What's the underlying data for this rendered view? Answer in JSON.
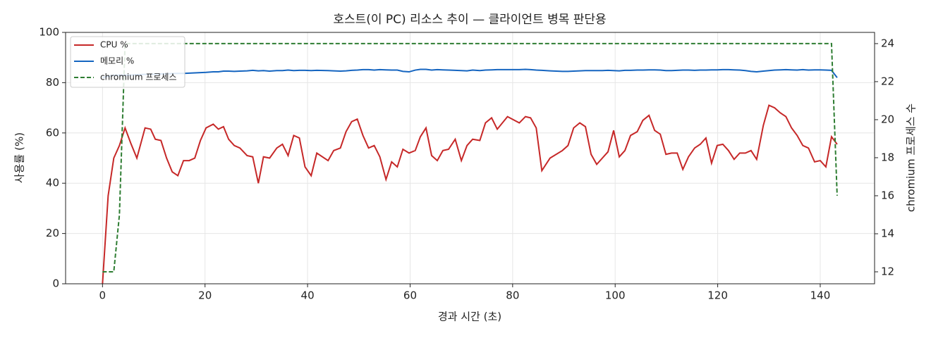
{
  "chart_data": {
    "type": "line",
    "title": "호스트(이 PC) 리소스 추이 — 클라이언트 병목 판단용",
    "x_label": "경과 시간 (초)",
    "y_label": "사용률 (%)",
    "y2_label": "chromium 프로세스 수",
    "x": [
      0,
      1.1,
      2.2,
      3.3,
      4.4,
      5.5,
      6.7,
      8.3,
      9.4,
      10.3,
      11.4,
      12.5,
      13.6,
      14.7,
      15.8,
      16.9,
      18,
      19.1,
      20.2,
      21.6,
      22.6,
      23.6,
      24.6,
      25.7,
      26.8,
      28.2,
      29.3,
      30.4,
      31.4,
      32.6,
      34,
      35.1,
      36.2,
      37.3,
      38.4,
      39.5,
      40.7,
      41.8,
      44,
      45.1,
      46.4,
      47.5,
      48.6,
      49.7,
      50.8,
      51.9,
      53,
      54.1,
      55.3,
      56.4,
      57.5,
      58.6,
      59.8,
      61,
      62,
      63.1,
      64.2,
      65.3,
      66.4,
      67.5,
      68.8,
      70,
      71.1,
      72.2,
      73.6,
      74.7,
      75.9,
      77,
      79,
      81.3,
      82.5,
      83.5,
      84.6,
      85.7,
      87.3,
      89.7,
      90.8,
      91.9,
      93.1,
      94.2,
      95.3,
      96.4,
      97.5,
      98.6,
      99.7,
      100.8,
      101.9,
      103,
      104.3,
      105.4,
      106.6,
      107.7,
      108.8,
      109.9,
      111,
      112.1,
      113.2,
      114.3,
      115.5,
      116.6,
      117.7,
      118.8,
      119.9,
      121,
      122.1,
      123.2,
      124.3,
      125.4,
      126.5,
      127.6,
      128.9,
      130,
      131.1,
      132.2,
      133.3,
      134.4,
      135.5,
      136.6,
      137.7,
      138.9,
      140,
      141.1,
      142.2,
      143.3
    ],
    "series": [
      {
        "name": "CPU %",
        "color": "#c62828",
        "linestyle": "solid",
        "values": [
          0,
          35,
          50,
          55,
          62,
          56,
          50,
          62,
          61.5,
          57.5,
          57,
          50,
          44.5,
          43,
          49,
          49,
          50,
          57,
          62,
          63.5,
          61.5,
          62.5,
          57.5,
          55,
          54,
          51,
          50.5,
          40,
          50.5,
          50,
          54,
          55.5,
          51,
          59,
          58,
          46.5,
          43,
          52,
          49,
          53,
          54,
          60.5,
          64.5,
          65.5,
          59,
          54,
          55,
          50.5,
          41.5,
          48.5,
          46.5,
          53.5,
          52,
          53,
          58.5,
          62,
          51,
          49,
          53,
          53.5,
          57.5,
          49,
          55,
          57.5,
          57,
          64,
          66,
          61.5,
          66.5,
          64,
          66.5,
          66,
          62,
          45,
          50,
          53,
          55,
          62,
          64,
          62.5,
          51.5,
          47.5,
          50,
          52.5,
          61,
          50.5,
          53,
          59,
          60.5,
          65,
          67,
          61,
          59.5,
          51.5,
          52,
          52,
          45.5,
          50.5,
          54,
          55.5,
          58,
          48,
          55,
          55.5,
          53,
          49.5,
          52,
          52,
          53,
          49.5,
          63,
          71,
          70,
          68,
          66.5,
          62,
          59,
          55,
          54,
          48.5,
          49,
          46.5,
          58.5,
          55.5
        ]
      },
      {
        "name": "메모리 %",
        "color": "#1565c0",
        "linestyle": "solid",
        "values": [
          82,
          82.5,
          83,
          83,
          83,
          83,
          83.2,
          83.3,
          83.3,
          83.4,
          83.5,
          83.5,
          83.6,
          83.7,
          83.7,
          83.8,
          83.9,
          84,
          84.1,
          84.3,
          84.3,
          84.6,
          84.6,
          84.5,
          84.6,
          84.7,
          84.9,
          84.7,
          84.8,
          84.6,
          84.8,
          84.8,
          85,
          84.8,
          84.9,
          84.9,
          84.8,
          84.9,
          84.8,
          84.7,
          84.6,
          84.7,
          84.9,
          85,
          85.2,
          85.2,
          85,
          85.2,
          85.1,
          85,
          85,
          84.5,
          84.3,
          85,
          85.3,
          85.3,
          85,
          85.2,
          85.1,
          85,
          84.9,
          84.8,
          84.7,
          85,
          84.8,
          85,
          85.1,
          85.2,
          85.2,
          85.2,
          85.3,
          85.2,
          85,
          84.9,
          84.7,
          84.5,
          84.5,
          84.6,
          84.7,
          84.8,
          84.8,
          84.8,
          84.8,
          84.9,
          84.8,
          84.7,
          84.9,
          84.9,
          85,
          85,
          85.1,
          85.1,
          85,
          84.8,
          84.8,
          84.9,
          85,
          85,
          84.9,
          85,
          85,
          85.1,
          85.1,
          85.2,
          85.2,
          85.1,
          85,
          84.8,
          84.5,
          84.3,
          84.6,
          84.8,
          85,
          85.1,
          85.2,
          85.1,
          85,
          85.2,
          85,
          85.1,
          85.1,
          85,
          84.9,
          82
        ]
      },
      {
        "name": "chromium 프로세스",
        "color": "#2e7d32",
        "linestyle": "dashed",
        "axis": "y2",
        "values": [
          12,
          12,
          12,
          15,
          24,
          24,
          24,
          24,
          24,
          24,
          24,
          24,
          24,
          24,
          24,
          24,
          24,
          24,
          24,
          24,
          24,
          24,
          24,
          24,
          24,
          24,
          24,
          24,
          24,
          24,
          24,
          24,
          24,
          24,
          24,
          24,
          24,
          24,
          24,
          24,
          24,
          24,
          24,
          24,
          24,
          24,
          24,
          24,
          24,
          24,
          24,
          24,
          24,
          24,
          24,
          24,
          24,
          24,
          24,
          24,
          24,
          24,
          24,
          24,
          24,
          24,
          24,
          24,
          24,
          24,
          24,
          24,
          24,
          24,
          24,
          24,
          24,
          24,
          24,
          24,
          24,
          24,
          24,
          24,
          24,
          24,
          24,
          24,
          24,
          24,
          24,
          24,
          24,
          24,
          24,
          24,
          24,
          24,
          24,
          24,
          24,
          24,
          24,
          24,
          24,
          24,
          24,
          24,
          24,
          24,
          24,
          24,
          24,
          24,
          24,
          24,
          24,
          24,
          24,
          24,
          24,
          24,
          24,
          16
        ]
      }
    ],
    "xlim": [
      -7.2,
      150.6
    ],
    "xticks": [
      0,
      20,
      40,
      60,
      80,
      100,
      120,
      140
    ],
    "ylim": [
      0,
      100
    ],
    "yticks": [
      0,
      20,
      40,
      60,
      80,
      100
    ],
    "y2lim": [
      11.37,
      24.59
    ],
    "y2ticks": [
      12,
      14,
      16,
      18,
      20,
      22,
      24
    ],
    "grid": true,
    "legend": "upper-left"
  }
}
